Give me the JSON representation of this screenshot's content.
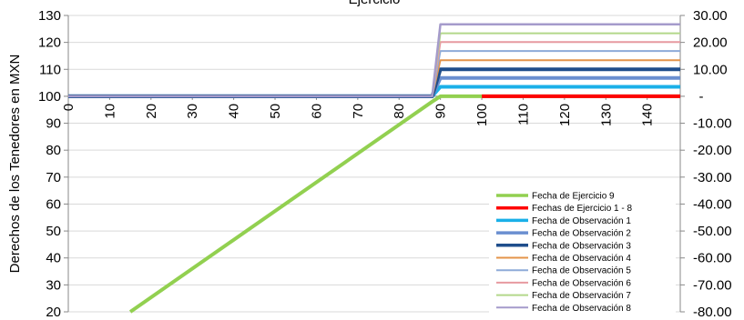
{
  "chart_data": {
    "type": "line",
    "title": "Ejercicio",
    "ylabel": "Derechos de los Tenedores en MXN",
    "xlabel": "",
    "xlim": [
      0,
      148
    ],
    "ylim": [
      20,
      130
    ],
    "y2lim": [
      -80,
      30
    ],
    "x_ticks": [
      "0",
      "10",
      "20",
      "30",
      "40",
      "50",
      "60",
      "70",
      "80",
      "90",
      "100",
      "110",
      "120",
      "130",
      "140"
    ],
    "y_ticks": [
      "20",
      "30",
      "40",
      "50",
      "60",
      "70",
      "80",
      "90",
      "100",
      "110",
      "120",
      "130"
    ],
    "y2_ticks": [
      "-80.00",
      "-70.00",
      "-60.00",
      "-50.00",
      "-40.00",
      "-30.00",
      "-20.00",
      "-10.00",
      "-",
      "10.00",
      "20.00",
      "30.00"
    ],
    "grid": "horizontal",
    "legend_position": "bottom-right",
    "series": [
      {
        "name": "Fecha de Ejercicio 9",
        "color": "#92d050",
        "width": 4,
        "points": [
          [
            15,
            20
          ],
          [
            88,
            98
          ],
          [
            90,
            100
          ],
          [
            148,
            100
          ]
        ]
      },
      {
        "name": "Fechas de Ejercicio 1 - 8",
        "color": "#ff0000",
        "width": 4,
        "points": [
          [
            100,
            100
          ],
          [
            148,
            100
          ]
        ]
      },
      {
        "name": "Fecha de Observación 1",
        "color": "#1ab0e8",
        "width": 4,
        "points": [
          [
            0,
            100
          ],
          [
            88,
            100
          ],
          [
            90,
            103.5
          ],
          [
            148,
            103.5
          ]
        ]
      },
      {
        "name": "Fecha de Observación 2",
        "color": "#6a8fd0",
        "width": 4,
        "points": [
          [
            0,
            100
          ],
          [
            88,
            100
          ],
          [
            90,
            106.8
          ],
          [
            148,
            106.8
          ]
        ]
      },
      {
        "name": "Fecha de Observación 3",
        "color": "#1f4e8c",
        "width": 4,
        "points": [
          [
            0,
            100
          ],
          [
            88,
            100
          ],
          [
            90,
            110
          ],
          [
            148,
            110
          ]
        ]
      },
      {
        "name": "Fecha de Observación 4",
        "color": "#e4944a",
        "width": 2,
        "points": [
          [
            0,
            100
          ],
          [
            88,
            100
          ],
          [
            90,
            113.4
          ],
          [
            148,
            113.4
          ]
        ]
      },
      {
        "name": "Fecha de Observación 5",
        "color": "#8eabd8",
        "width": 2,
        "points": [
          [
            0,
            100
          ],
          [
            88,
            100
          ],
          [
            90,
            116.8
          ],
          [
            148,
            116.8
          ]
        ]
      },
      {
        "name": "Fecha de Observación 6",
        "color": "#e79aa0",
        "width": 2,
        "points": [
          [
            0,
            100
          ],
          [
            88,
            100
          ],
          [
            90,
            120.1
          ],
          [
            148,
            120.1
          ]
        ]
      },
      {
        "name": "Fecha de Observación 7",
        "color": "#b3d88a",
        "width": 2,
        "points": [
          [
            0,
            100
          ],
          [
            88,
            100
          ],
          [
            90,
            123.4
          ],
          [
            148,
            123.4
          ]
        ]
      },
      {
        "name": "Fecha de Observación 8",
        "color": "#a59bcb",
        "width": 2.5,
        "points": [
          [
            0,
            100
          ],
          [
            88,
            100
          ],
          [
            90,
            126.7
          ],
          [
            148,
            126.7
          ]
        ]
      }
    ]
  }
}
